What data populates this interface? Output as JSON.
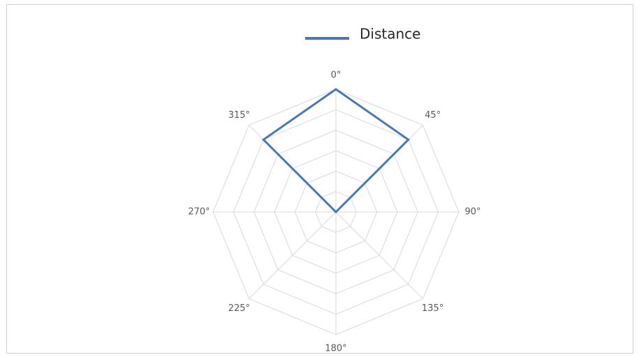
{
  "chart_data": {
    "type": "radar",
    "categories": [
      "0°",
      "45°",
      "90°",
      "135°",
      "180°",
      "225°",
      "270°",
      "315°"
    ],
    "series": [
      {
        "name": "Distance",
        "color": "#4a78b5",
        "values": [
          6,
          5,
          0,
          0,
          0,
          0,
          0,
          5
        ]
      }
    ],
    "ylim": [
      0,
      6
    ],
    "yticks": [
      1,
      2,
      3,
      4,
      5,
      6
    ],
    "grid": true,
    "legend": "top"
  }
}
